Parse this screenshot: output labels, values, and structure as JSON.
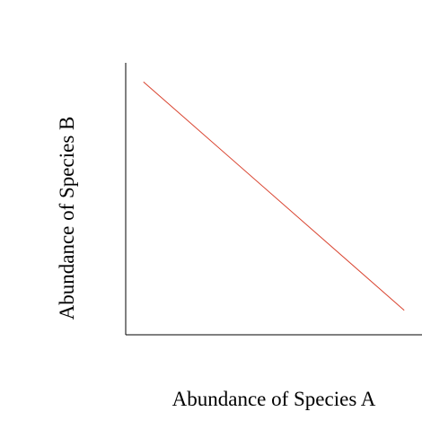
{
  "chart_data": {
    "type": "line",
    "title": "",
    "xlabel": "Abundance of Species A",
    "ylabel": "Abundance of Species B",
    "xlim": [
      0,
      1
    ],
    "ylim": [
      0,
      1
    ],
    "grid": false,
    "ticks": false,
    "series": [
      {
        "x": [
          0.06,
          0.94
        ],
        "y": [
          0.93,
          0.09
        ],
        "color": "#d9432f"
      }
    ]
  }
}
